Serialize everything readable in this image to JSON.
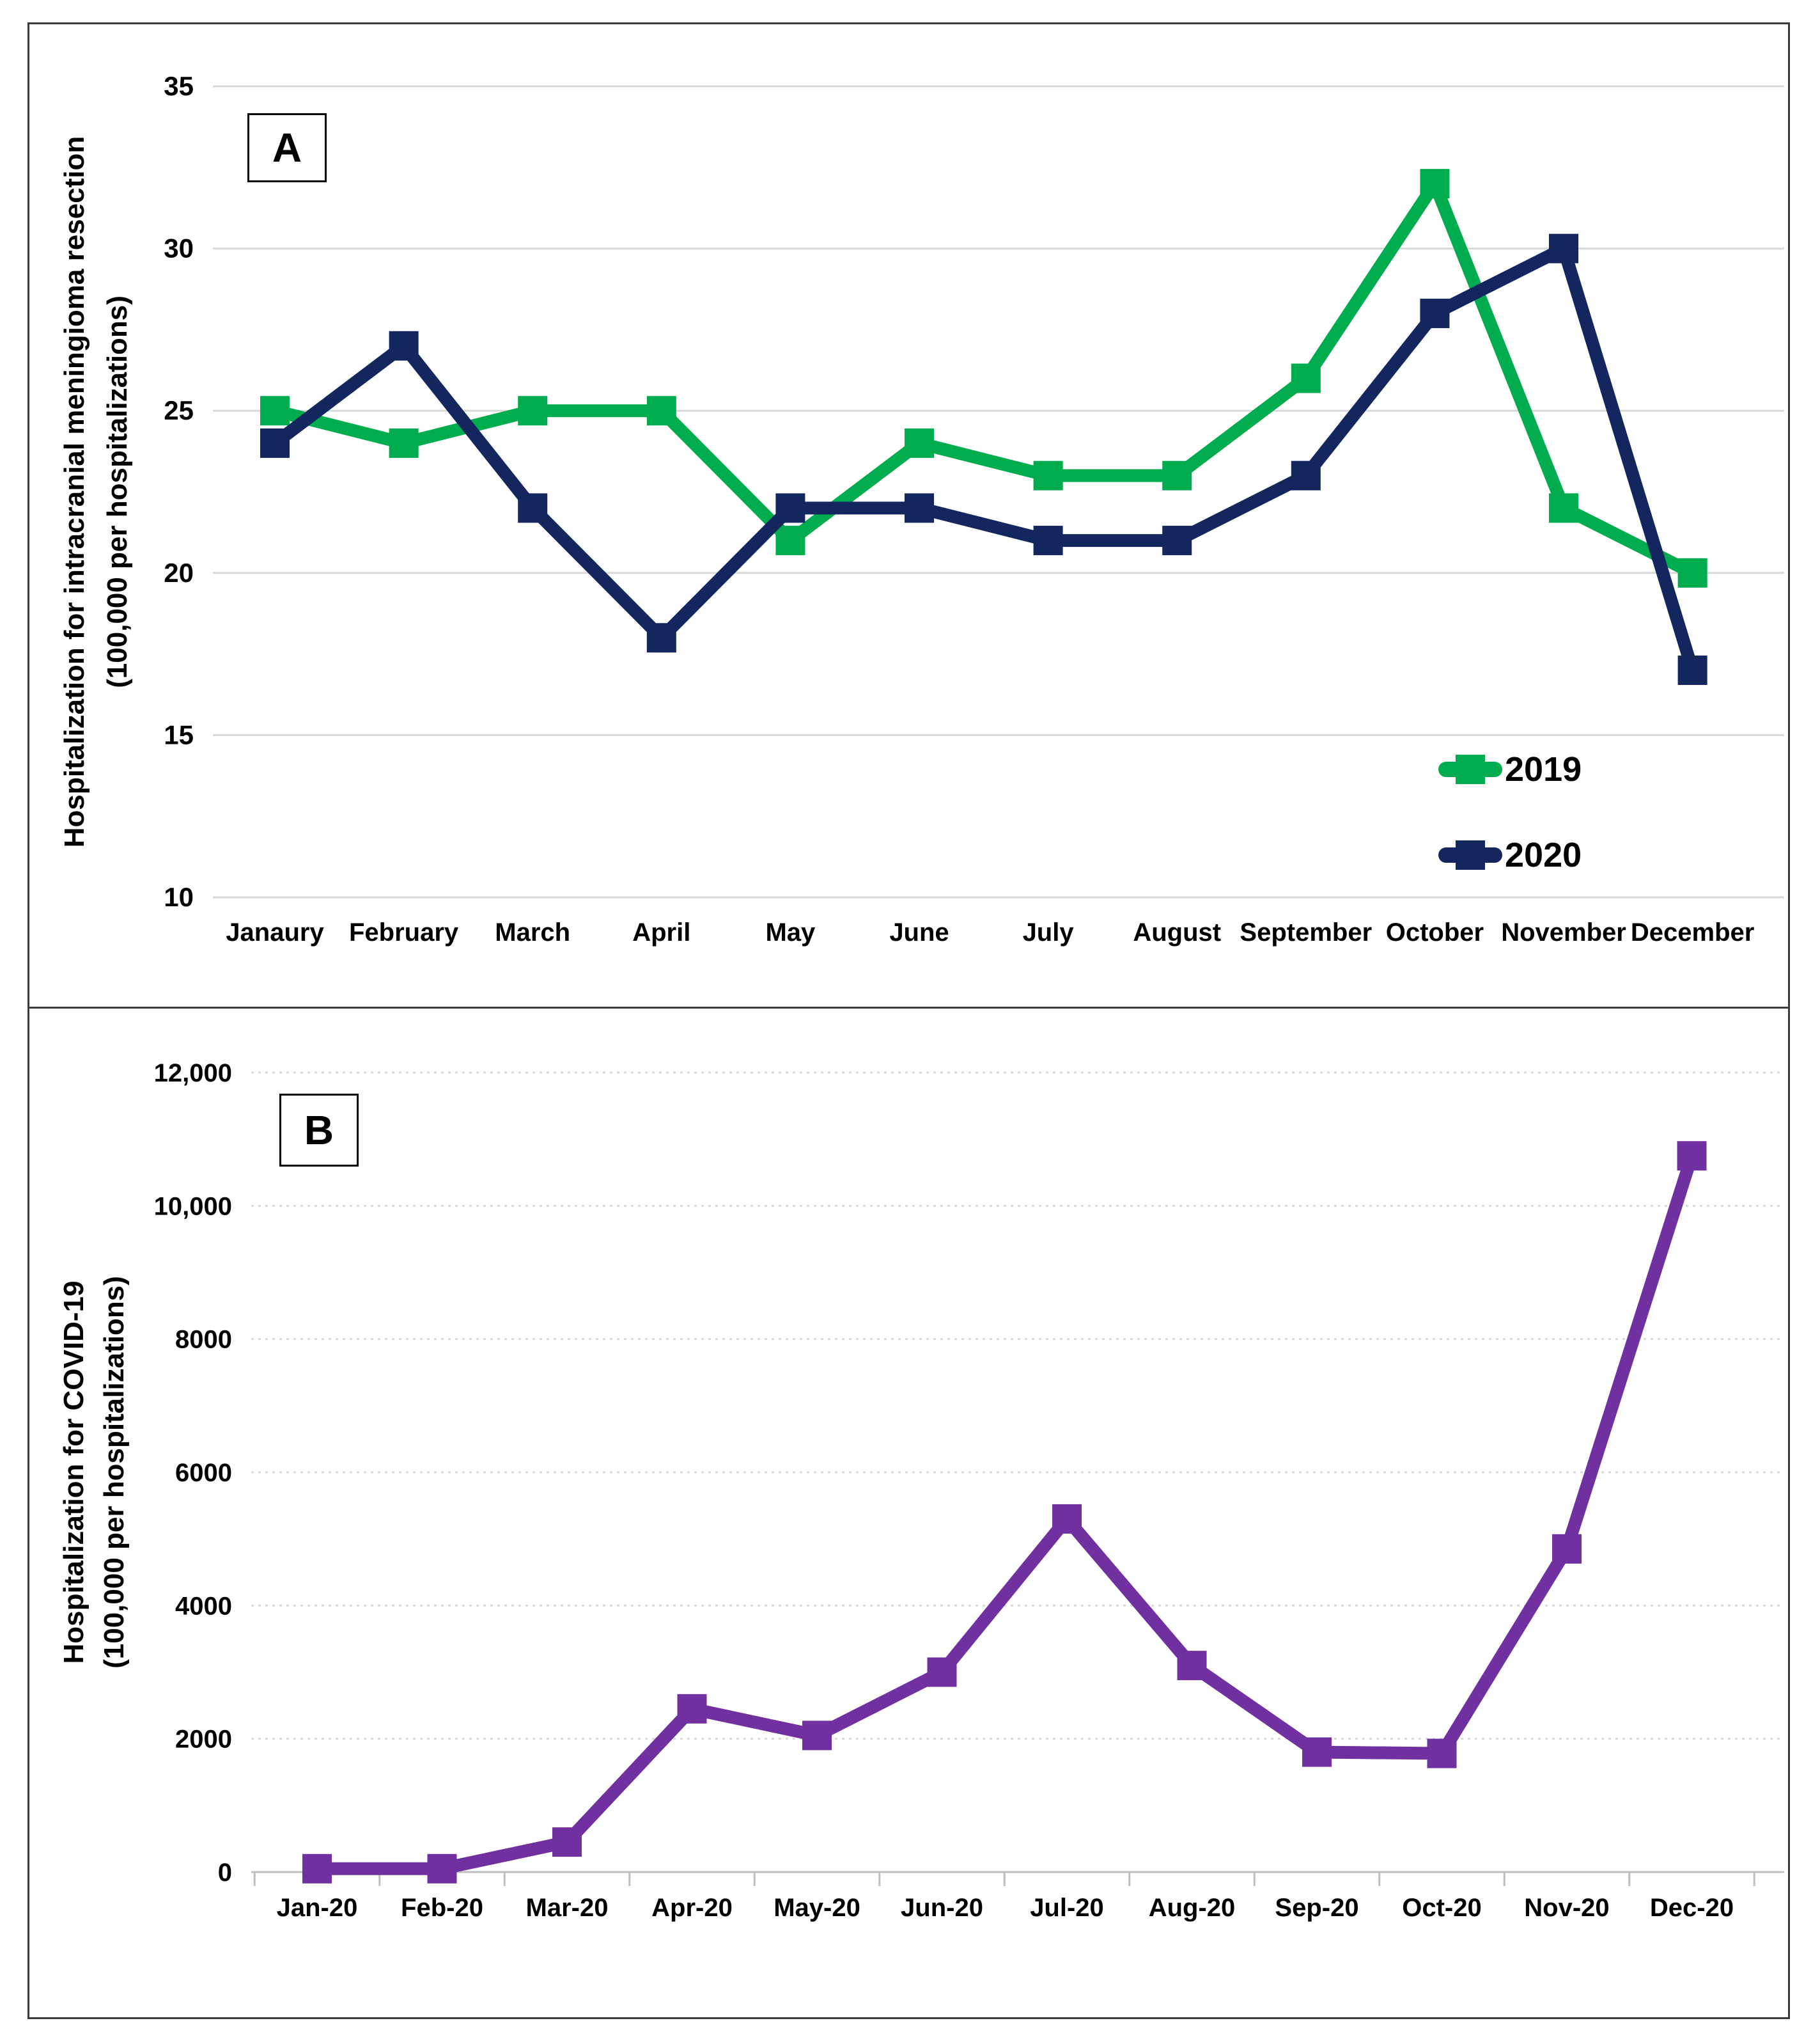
{
  "panels": [
    {
      "label": "A"
    },
    {
      "label": "B"
    }
  ],
  "chart_data": [
    {
      "type": "line",
      "panel": "A",
      "title": "",
      "ylabel_line1": "Hospitalization for intracranial meningioma resection",
      "ylabel_line2": "(100,000 per hospitalizations)",
      "categories": [
        "Janaury",
        "February",
        "March",
        "April",
        "May",
        "June",
        "July",
        "August",
        "September",
        "October",
        "November",
        "December"
      ],
      "series": [
        {
          "name": "2019",
          "color": "#00AC4E",
          "values": [
            25,
            24,
            25,
            25,
            21,
            24,
            23,
            23,
            26,
            32,
            22,
            20
          ]
        },
        {
          "name": "2020",
          "color": "#13265E",
          "values": [
            24,
            27,
            22,
            18,
            22,
            22,
            21,
            21,
            23,
            28,
            30,
            17
          ]
        }
      ],
      "ylim": [
        10,
        35
      ],
      "yticks": [
        {
          "value": 35,
          "label": "35"
        },
        {
          "value": 30,
          "label": "30"
        },
        {
          "value": 25,
          "label": "25"
        },
        {
          "value": 20,
          "label": "20"
        },
        {
          "value": 15,
          "label": "15"
        },
        {
          "value": 10,
          "label": "10"
        }
      ],
      "grid": "horizontal",
      "legend_position": "inside-right-bottom"
    },
    {
      "type": "line",
      "panel": "B",
      "title": "",
      "ylabel_line1": "Hospitalization for COVID-19",
      "ylabel_line2": "(100,000 per hospitalizations)",
      "categories": [
        "Jan-20",
        "Feb-20",
        "Mar-20",
        "Apr-20",
        "May-20",
        "Jun-20",
        "Jul-20",
        "Aug-20",
        "Sep-20",
        "Oct-20",
        "Nov-20",
        "Dec-20"
      ],
      "series": [
        {
          "color": "#7030A0",
          "values": [
            50,
            50,
            450,
            2450,
            2050,
            3000,
            5300,
            3100,
            1800,
            1780,
            4850,
            10750
          ]
        }
      ],
      "ylim": [
        0,
        12000
      ],
      "yticks": [
        {
          "value": 12000,
          "label": "12,000"
        },
        {
          "value": 10000,
          "label": "10,000"
        },
        {
          "value": 8000,
          "label": "8000"
        },
        {
          "value": 6000,
          "label": "6000"
        },
        {
          "value": 4000,
          "label": "4000"
        },
        {
          "value": 2000,
          "label": "2000"
        },
        {
          "value": 0,
          "label": "0"
        }
      ],
      "grid": "horizontal",
      "legend_position": "none"
    }
  ],
  "colors": {
    "gridline": "#D9D9D9",
    "axis": "#BFBFBF",
    "frame": "#3a3a3a"
  }
}
